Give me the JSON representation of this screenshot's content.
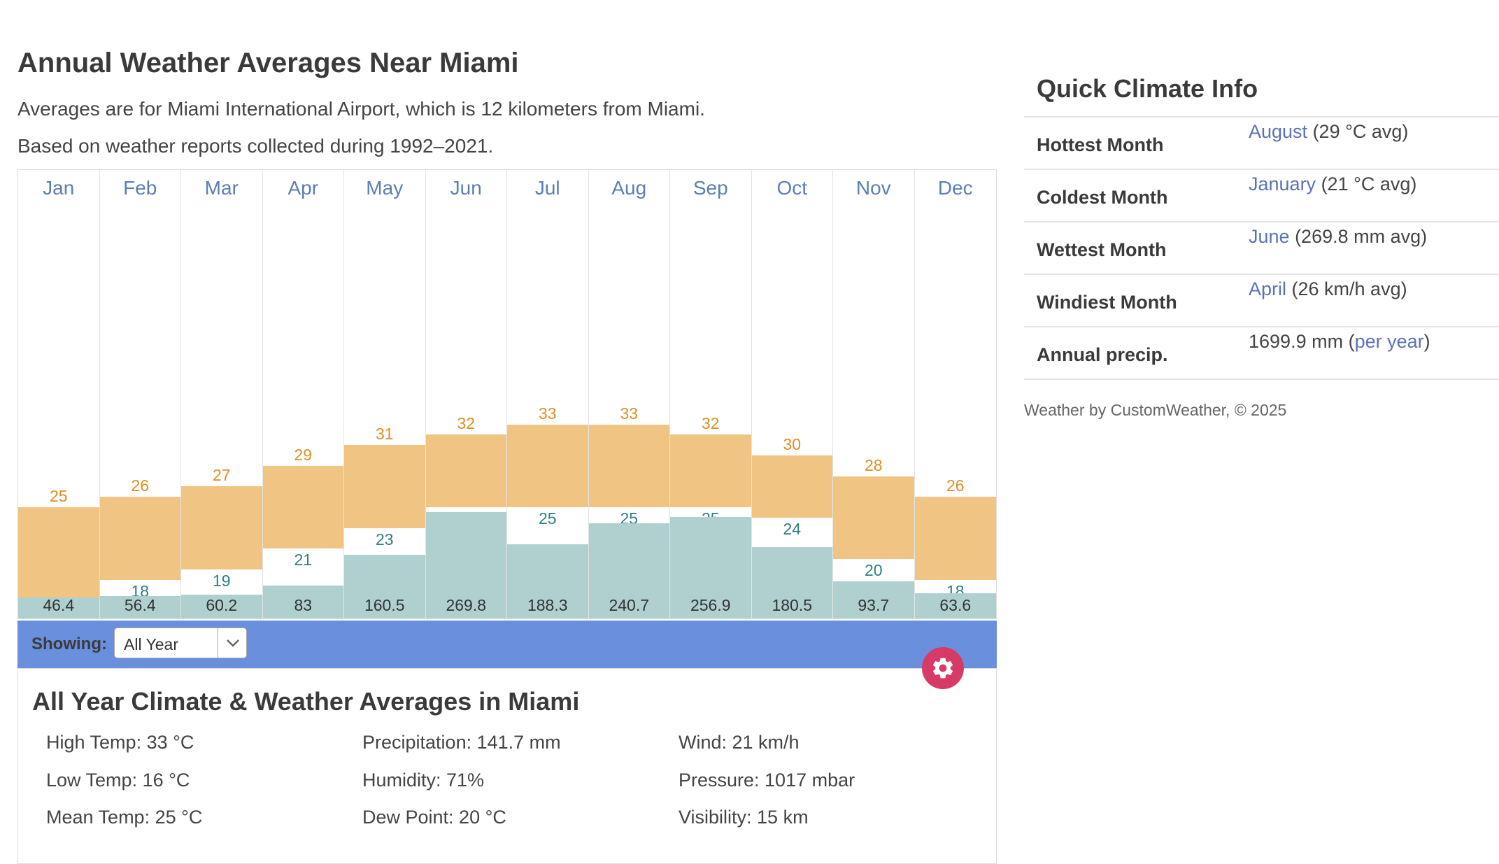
{
  "page": {
    "title": "Annual Weather Averages Near Miami",
    "intro1": "Averages are for Miami International Airport, which is 12 kilometers from Miami.",
    "intro2": "Based on weather reports collected during 1992–2021."
  },
  "chart_data": {
    "type": "bar",
    "categories": [
      "Jan",
      "Feb",
      "Mar",
      "Apr",
      "May",
      "Jun",
      "Jul",
      "Aug",
      "Sep",
      "Oct",
      "Nov",
      "Dec"
    ],
    "series": [
      {
        "name": "High",
        "values": [
          25,
          26,
          27,
          29,
          31,
          32,
          33,
          33,
          32,
          30,
          28,
          26
        ]
      },
      {
        "name": "Low",
        "values": [
          16,
          18,
          19,
          21,
          23,
          25,
          25,
          25,
          25,
          24,
          20,
          18
        ]
      },
      {
        "name": "Precipitation",
        "values": [
          46.4,
          56.4,
          60.2,
          83,
          160.5,
          269.8,
          188.3,
          240.7,
          256.9,
          180.5,
          93.7,
          63.6
        ]
      }
    ],
    "temp_ylim": [
      0,
      45
    ],
    "precip_ylim": [
      0,
      500
    ],
    "colors": {
      "temp_bar": "#f0c584",
      "high_text": "#e08e22",
      "low_text": "#2f7f83",
      "precip_bar": "#b0d0cf"
    }
  },
  "selector": {
    "label": "Showing:",
    "value": "All Year"
  },
  "details": {
    "title": "All Year Climate & Weather Averages in Miami",
    "stats": [
      [
        "High Temp: 33 °C",
        "Precipitation: 141.7 mm",
        "Wind: 21 km/h"
      ],
      [
        "Low Temp: 16 °C",
        "Humidity: 71%",
        "Pressure: 1017 mbar"
      ],
      [
        "Mean Temp: 25 °C",
        "Dew Point: 20 °C",
        "Visibility: 15 km"
      ]
    ]
  },
  "sidebar": {
    "title": "Quick Climate Info",
    "rows": [
      {
        "label": "Hottest Month",
        "link": "August",
        "rest": " (29 °C avg)",
        "prefix": "",
        "suffix": ""
      },
      {
        "label": "Coldest Month",
        "link": "January",
        "rest": " (21 °C avg)",
        "prefix": "",
        "suffix": ""
      },
      {
        "label": "Wettest Month",
        "link": "June",
        "rest": " (269.8 mm avg)",
        "prefix": "",
        "suffix": ""
      },
      {
        "label": "Windiest Month",
        "link": "April",
        "rest": " (26 km/h avg)",
        "prefix": "",
        "suffix": ""
      },
      {
        "label": "Annual precip.",
        "prefix": "1699.9 mm (",
        "link": "per year",
        "suffix": ")",
        "rest": ""
      }
    ],
    "credit": "Weather by CustomWeather, © 2025"
  },
  "icons": {
    "settings": "gear-icon",
    "dropdown": "chevron-down-icon"
  }
}
